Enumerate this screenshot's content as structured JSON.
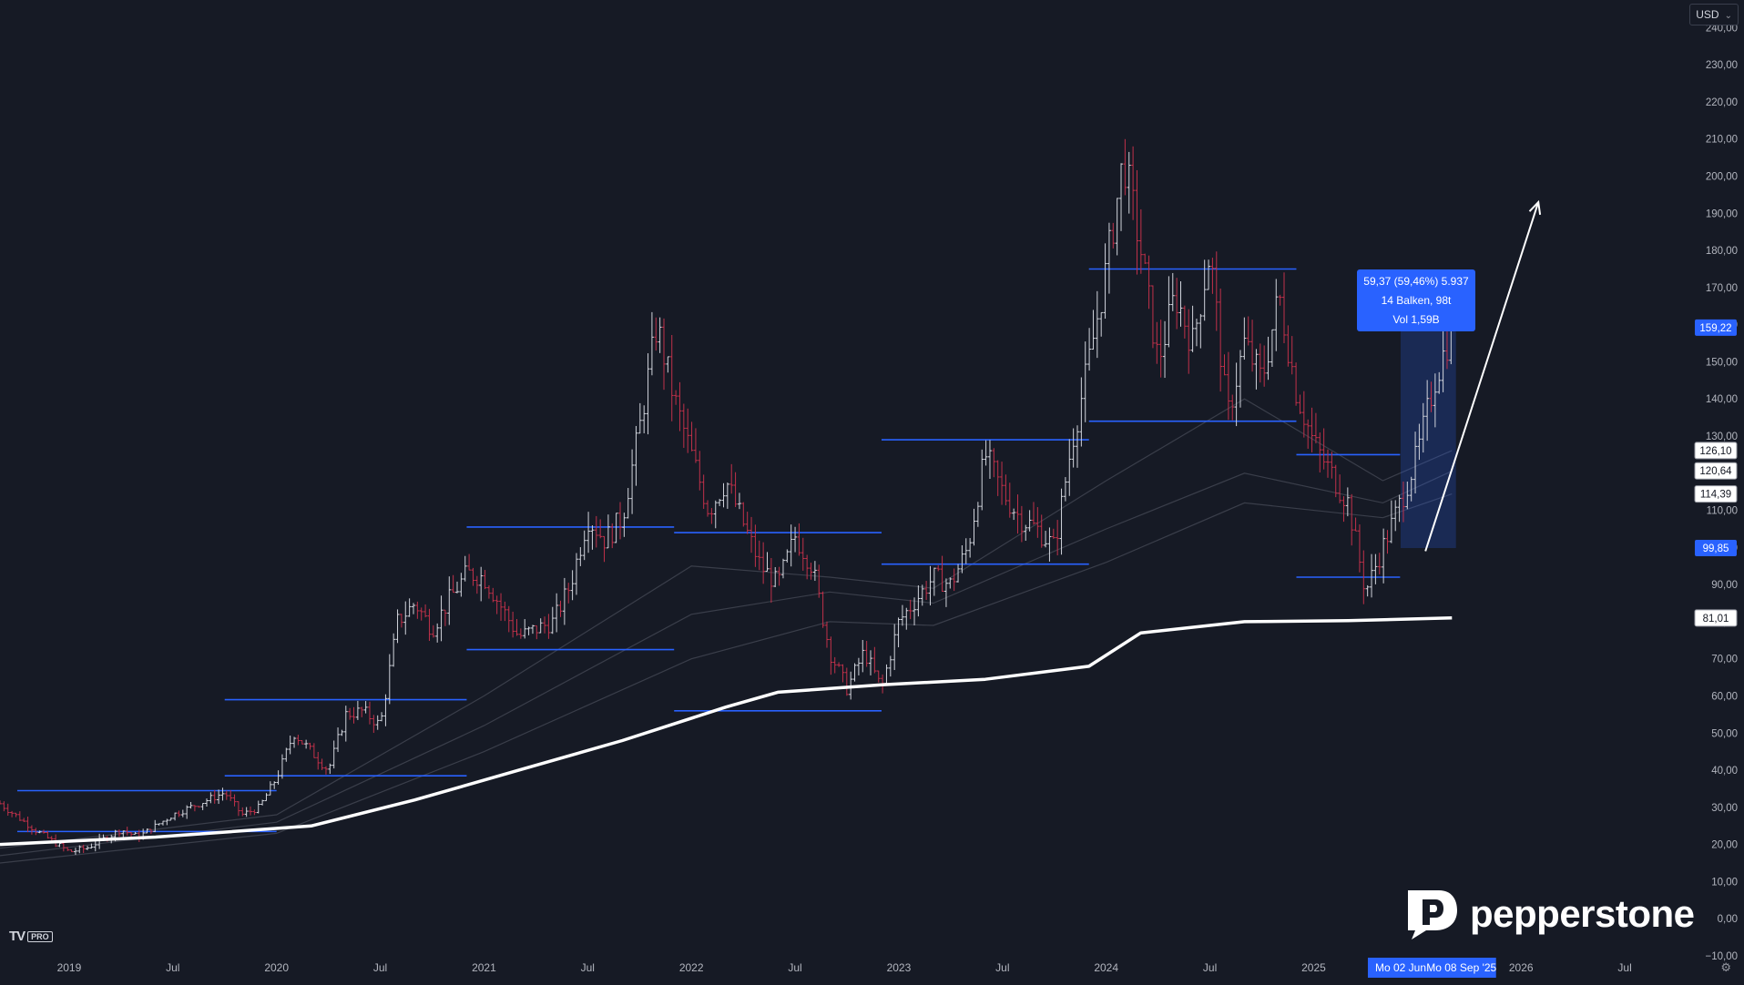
{
  "app": {
    "currency": "USD",
    "logo_text": "pepperstone",
    "platform_badge": "PRO",
    "platform_mark": "TV"
  },
  "colors": {
    "background": "#161a25",
    "up": "#d1d4dc",
    "down": "#c0314a",
    "level": "#2962ff",
    "sma": "#ffffff",
    "ema": "#3a3e4a",
    "axis_text": "#b2b5be"
  },
  "measure_tooltip": {
    "line1": "59,37 (59,46%) 5.937",
    "line2": "14 Balken, 98t",
    "line3": "Vol 1,59B"
  },
  "chart_data": {
    "type": "candlestick",
    "title": "",
    "x_range": [
      "2018-09",
      "2026-11"
    ],
    "y_range": [
      -10,
      245
    ],
    "y_ticks": [
      "240,00",
      "230,00",
      "220,00",
      "210,00",
      "200,00",
      "190,00",
      "180,00",
      "170,00",
      "160,00",
      "150,00",
      "140,00",
      "130,00",
      "120,00",
      "110,00",
      "100,00",
      "90,00",
      "80,00",
      "70,00",
      "60,00",
      "50,00",
      "40,00",
      "30,00",
      "20,00",
      "10,00",
      "0,00",
      "−10,00"
    ],
    "x_ticks": [
      {
        "label": "2019",
        "date": "2019-01"
      },
      {
        "label": "Jul",
        "date": "2019-07"
      },
      {
        "label": "2020",
        "date": "2020-01"
      },
      {
        "label": "Jul",
        "date": "2020-07"
      },
      {
        "label": "2021",
        "date": "2021-01"
      },
      {
        "label": "Jul",
        "date": "2021-07"
      },
      {
        "label": "2022",
        "date": "2022-01"
      },
      {
        "label": "Jul",
        "date": "2022-07"
      },
      {
        "label": "2023",
        "date": "2023-01"
      },
      {
        "label": "Jul",
        "date": "2023-07"
      },
      {
        "label": "2024",
        "date": "2024-01"
      },
      {
        "label": "Jul",
        "date": "2024-07"
      },
      {
        "label": "2025",
        "date": "2025-01"
      },
      {
        "label": "2026",
        "date": "2026-01"
      },
      {
        "label": "Jul",
        "date": "2026-07"
      }
    ],
    "price_tags": [
      {
        "label": "159,22",
        "value": 159.22,
        "style": "blue"
      },
      {
        "label": "126,10",
        "value": 126.1,
        "style": "white"
      },
      {
        "label": "120,64",
        "value": 120.64,
        "style": "white"
      },
      {
        "label": "114,39",
        "value": 114.39,
        "style": "white"
      },
      {
        "label": "99,85",
        "value": 99.85,
        "style": "blue"
      },
      {
        "label": "81,01",
        "value": 81.01,
        "style": "white"
      }
    ],
    "date_tags": [
      {
        "label": "Mo 02 Jun",
        "date": "2025-06-02"
      },
      {
        "label": "Mo 08 Sep '25",
        "date": "2025-09-08"
      }
    ],
    "price_path": [
      [
        "2018-09",
        31
      ],
      [
        "2018-11",
        24
      ],
      [
        "2019-01",
        18
      ],
      [
        "2019-02",
        19
      ],
      [
        "2019-04",
        24
      ],
      [
        "2019-05",
        22
      ],
      [
        "2019-07",
        28
      ],
      [
        "2019-09",
        32
      ],
      [
        "2019-10",
        34
      ],
      [
        "2019-11",
        28
      ],
      [
        "2019-12",
        30
      ],
      [
        "2020-01",
        38
      ],
      [
        "2020-02",
        50
      ],
      [
        "2020-03",
        45
      ],
      [
        "2020-04",
        40
      ],
      [
        "2020-05",
        55
      ],
      [
        "2020-06",
        56
      ],
      [
        "2020-07",
        52
      ],
      [
        "2020-08",
        80
      ],
      [
        "2020-09",
        85
      ],
      [
        "2020-10",
        78
      ],
      [
        "2020-11",
        86
      ],
      [
        "2020-12",
        93
      ],
      [
        "2021-01",
        92
      ],
      [
        "2021-03",
        76
      ],
      [
        "2021-05",
        80
      ],
      [
        "2021-06",
        90
      ],
      [
        "2021-07",
        108
      ],
      [
        "2021-08",
        102
      ],
      [
        "2021-09",
        108
      ],
      [
        "2021-10",
        132
      ],
      [
        "2021-11",
        160
      ],
      [
        "2021-12",
        140
      ],
      [
        "2022-01",
        125
      ],
      [
        "2022-02",
        110
      ],
      [
        "2022-03",
        118
      ],
      [
        "2022-05",
        95
      ],
      [
        "2022-06",
        90
      ],
      [
        "2022-07",
        103
      ],
      [
        "2022-08",
        95
      ],
      [
        "2022-09",
        72
      ],
      [
        "2022-10",
        62
      ],
      [
        "2022-11",
        72
      ],
      [
        "2022-12",
        62
      ],
      [
        "2023-01",
        80
      ],
      [
        "2023-03",
        92
      ],
      [
        "2023-04",
        90
      ],
      [
        "2023-05",
        100
      ],
      [
        "2023-06",
        125
      ],
      [
        "2023-07",
        115
      ],
      [
        "2023-08",
        108
      ],
      [
        "2023-09",
        105
      ],
      [
        "2023-10",
        100
      ],
      [
        "2023-11",
        128
      ],
      [
        "2023-12",
        150
      ],
      [
        "2024-01",
        175
      ],
      [
        "2024-02",
        205
      ],
      [
        "2024-03",
        180
      ],
      [
        "2024-04",
        150
      ],
      [
        "2024-05",
        168
      ],
      [
        "2024-06",
        155
      ],
      [
        "2024-07",
        180
      ],
      [
        "2024-08",
        135
      ],
      [
        "2024-09",
        155
      ],
      [
        "2024-10",
        145
      ],
      [
        "2024-11",
        168
      ],
      [
        "2024-12",
        142
      ],
      [
        "2025-01",
        128
      ],
      [
        "2025-02",
        120
      ],
      [
        "2025-03",
        112
      ],
      [
        "2025-04",
        88
      ],
      [
        "2025-05",
        100
      ],
      [
        "2025-06",
        112
      ],
      [
        "2025-07",
        125
      ],
      [
        "2025-08",
        145
      ],
      [
        "2025-09",
        159
      ]
    ],
    "moving_average_200": [
      [
        "2018-09",
        20
      ],
      [
        "2019-06",
        22
      ],
      [
        "2020-03",
        25
      ],
      [
        "2020-09",
        32
      ],
      [
        "2021-03",
        40
      ],
      [
        "2021-09",
        48
      ],
      [
        "2022-03",
        57
      ],
      [
        "2022-06",
        61
      ],
      [
        "2022-12",
        63
      ],
      [
        "2023-06",
        64.5
      ],
      [
        "2023-12",
        68
      ],
      [
        "2024-03",
        77
      ],
      [
        "2024-09",
        80
      ],
      [
        "2025-03",
        80.3
      ],
      [
        "2025-09",
        81.01
      ]
    ],
    "moving_averages_faint": [
      {
        "points": [
          [
            "2018-09",
            17
          ],
          [
            "2020-01",
            26
          ],
          [
            "2021-01",
            52
          ],
          [
            "2022-01",
            82
          ],
          [
            "2022-09",
            88
          ],
          [
            "2023-03",
            85
          ],
          [
            "2024-01",
            105
          ],
          [
            "2024-09",
            120
          ],
          [
            "2025-05",
            112
          ],
          [
            "2025-09",
            120.6
          ]
        ]
      },
      {
        "points": [
          [
            "2018-09",
            15
          ],
          [
            "2020-01",
            23
          ],
          [
            "2021-01",
            45
          ],
          [
            "2022-01",
            70
          ],
          [
            "2022-09",
            80
          ],
          [
            "2023-03",
            79
          ],
          [
            "2024-01",
            96
          ],
          [
            "2024-09",
            112
          ],
          [
            "2025-05",
            108
          ],
          [
            "2025-09",
            114.4
          ]
        ]
      },
      {
        "points": [
          [
            "2018-09",
            19
          ],
          [
            "2020-01",
            28
          ],
          [
            "2021-01",
            60
          ],
          [
            "2022-01",
            95
          ],
          [
            "2022-09",
            92
          ],
          [
            "2023-03",
            89
          ],
          [
            "2024-01",
            118
          ],
          [
            "2024-09",
            140
          ],
          [
            "2025-05",
            118
          ],
          [
            "2025-09",
            126.1
          ]
        ]
      }
    ],
    "horizontal_levels": [
      {
        "from": "2018-10",
        "to": "2020-01",
        "value": 34.5
      },
      {
        "from": "2018-10",
        "to": "2020-01",
        "value": 23.5
      },
      {
        "from": "2019-10",
        "to": "2020-12",
        "value": 59
      },
      {
        "from": "2019-10",
        "to": "2020-12",
        "value": 38.5
      },
      {
        "from": "2020-12",
        "to": "2021-12",
        "value": 105.5
      },
      {
        "from": "2020-12",
        "to": "2021-12",
        "value": 72.5
      },
      {
        "from": "2021-12",
        "to": "2022-12",
        "value": 104
      },
      {
        "from": "2021-12",
        "to": "2022-12",
        "value": 56
      },
      {
        "from": "2022-12",
        "to": "2023-12",
        "value": 129
      },
      {
        "from": "2022-12",
        "to": "2023-12",
        "value": 95.5
      },
      {
        "from": "2023-12",
        "to": "2024-12",
        "value": 175
      },
      {
        "from": "2023-12",
        "to": "2024-12",
        "value": 134
      },
      {
        "from": "2024-12",
        "to": "2025-06",
        "value": 125
      },
      {
        "from": "2024-12",
        "to": "2025-06",
        "value": 92
      }
    ],
    "measure_range": {
      "from": "2025-06-02",
      "to": "2025-09-08",
      "low": 99.85,
      "high": 159.22
    },
    "projection_arrow": {
      "from": [
        "2025-07-15",
        99
      ],
      "to": [
        "2026-02-01",
        193
      ]
    }
  }
}
